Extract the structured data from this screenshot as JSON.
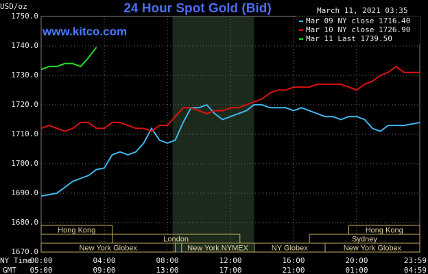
{
  "chart_data": {
    "type": "line",
    "title": "24 Hour Spot Gold (Bid)",
    "watermark": "www.kitco.com",
    "timestamp": "March 11, 2021 03:35",
    "y_unit_label": "USD/oz",
    "x_row_labels": [
      "NY Time",
      "GMT"
    ],
    "x": [
      0,
      0.5,
      1,
      1.5,
      2,
      2.5,
      3,
      3.5,
      4,
      4.5,
      5,
      5.5,
      6,
      6.5,
      7,
      7.5,
      8,
      8.5,
      9,
      9.5,
      10,
      10.5,
      11,
      11.5,
      12,
      12.5,
      13,
      13.5,
      14,
      14.5,
      15,
      15.5,
      16,
      16.5,
      17,
      17.5,
      18,
      18.5,
      19,
      19.5,
      20,
      20.5,
      21,
      21.5,
      22,
      22.5,
      23,
      23.5,
      24
    ],
    "xlim": [
      0,
      24
    ],
    "xticks": [
      {
        "value": 0,
        "label": "00:00"
      },
      {
        "value": 4,
        "label": "04:00"
      },
      {
        "value": 8,
        "label": "08:00"
      },
      {
        "value": 12,
        "label": "12:00"
      },
      {
        "value": 16,
        "label": "16:00"
      },
      {
        "value": 20,
        "label": "20:00"
      },
      {
        "value": 24,
        "label": "23:59"
      }
    ],
    "xticks_gmt": [
      "05:00",
      "09:00",
      "13:00",
      "17:00",
      "21:00",
      "01:00",
      "04:59"
    ],
    "ylim": [
      1670,
      1750
    ],
    "yticks": [
      {
        "value": 1670,
        "label": "1670.0"
      },
      {
        "value": 1680,
        "label": "1680.0"
      },
      {
        "value": 1690,
        "label": "1690.0"
      },
      {
        "value": 1700,
        "label": "1700.0"
      },
      {
        "value": 1710,
        "label": "1710.0"
      },
      {
        "value": 1720,
        "label": "1720.0"
      },
      {
        "value": 1730,
        "label": "1730.0"
      },
      {
        "value": 1740,
        "label": "1740.0"
      },
      {
        "value": 1750,
        "label": "1750.0"
      }
    ],
    "grid": true,
    "shaded_range": [
      8.33,
      13.5
    ],
    "series": [
      {
        "name": "Mar 09 NY close 1716.40",
        "color": "#3cb8f0",
        "values": [
          1689,
          1689.5,
          1690,
          1692,
          1694,
          1695,
          1696,
          1698,
          1698.5,
          1703,
          1704,
          1703,
          1704,
          1707,
          1712,
          1708,
          1707,
          1708,
          1714,
          1719,
          1719,
          1720,
          1717,
          1715,
          1716,
          1717,
          1718,
          1720,
          1720,
          1719,
          1719,
          1719,
          1718,
          1719,
          1718,
          1717,
          1716,
          1716,
          1715,
          1716,
          1716,
          1715,
          1712,
          1711,
          1713,
          1713,
          1713,
          1713.5,
          1714
        ]
      },
      {
        "name": "Mar 10 NY close 1726.90",
        "color": "#e01010",
        "values": [
          1712,
          1713,
          1712,
          1711,
          1712,
          1714,
          1714,
          1712,
          1712,
          1714,
          1714,
          1713,
          1712,
          1712,
          1711,
          1713,
          1713,
          1716,
          1719,
          1719,
          1718,
          1717,
          1718,
          1718,
          1719,
          1719,
          1720,
          1721,
          1722,
          1724,
          1725,
          1725,
          1726,
          1726,
          1726,
          1727,
          1727,
          1727,
          1727,
          1726,
          1725,
          1727,
          1728,
          1730,
          1731,
          1733,
          1731,
          1731,
          1731
        ]
      },
      {
        "name": "Mar 11 Last 1739.50",
        "color": "#20e020",
        "values": [
          1732,
          1733,
          1733,
          1734,
          1734,
          1733,
          1736,
          1739.5,
          null,
          null,
          null,
          null,
          null,
          null,
          null,
          null,
          null,
          null,
          null,
          null,
          null,
          null,
          null,
          null,
          null,
          null,
          null,
          null,
          null,
          null,
          null,
          null,
          null,
          null,
          null,
          null,
          null,
          null,
          null,
          null,
          null,
          null,
          null,
          null,
          null,
          null,
          null,
          null,
          null
        ]
      }
    ],
    "session_rows": [
      [
        {
          "name": "Hong Kong",
          "start": 0,
          "end": 4.5
        },
        {
          "name": "Hong Kong",
          "start": 19.5,
          "end": 24
        }
      ],
      [
        {
          "name": "London",
          "start": 4.5,
          "end": 12.6
        },
        {
          "name": "Sydney",
          "start": 17,
          "end": 24
        }
      ],
      [
        {
          "name": "New York Globex",
          "start": 0,
          "end": 8.5
        },
        {
          "name": "New York NYMEX",
          "start": 8.9,
          "end": 13.5
        },
        {
          "name": "NY Globex",
          "start": 13.5,
          "end": 18
        },
        {
          "name": "New York Globex",
          "start": 18,
          "end": 24
        }
      ]
    ]
  }
}
